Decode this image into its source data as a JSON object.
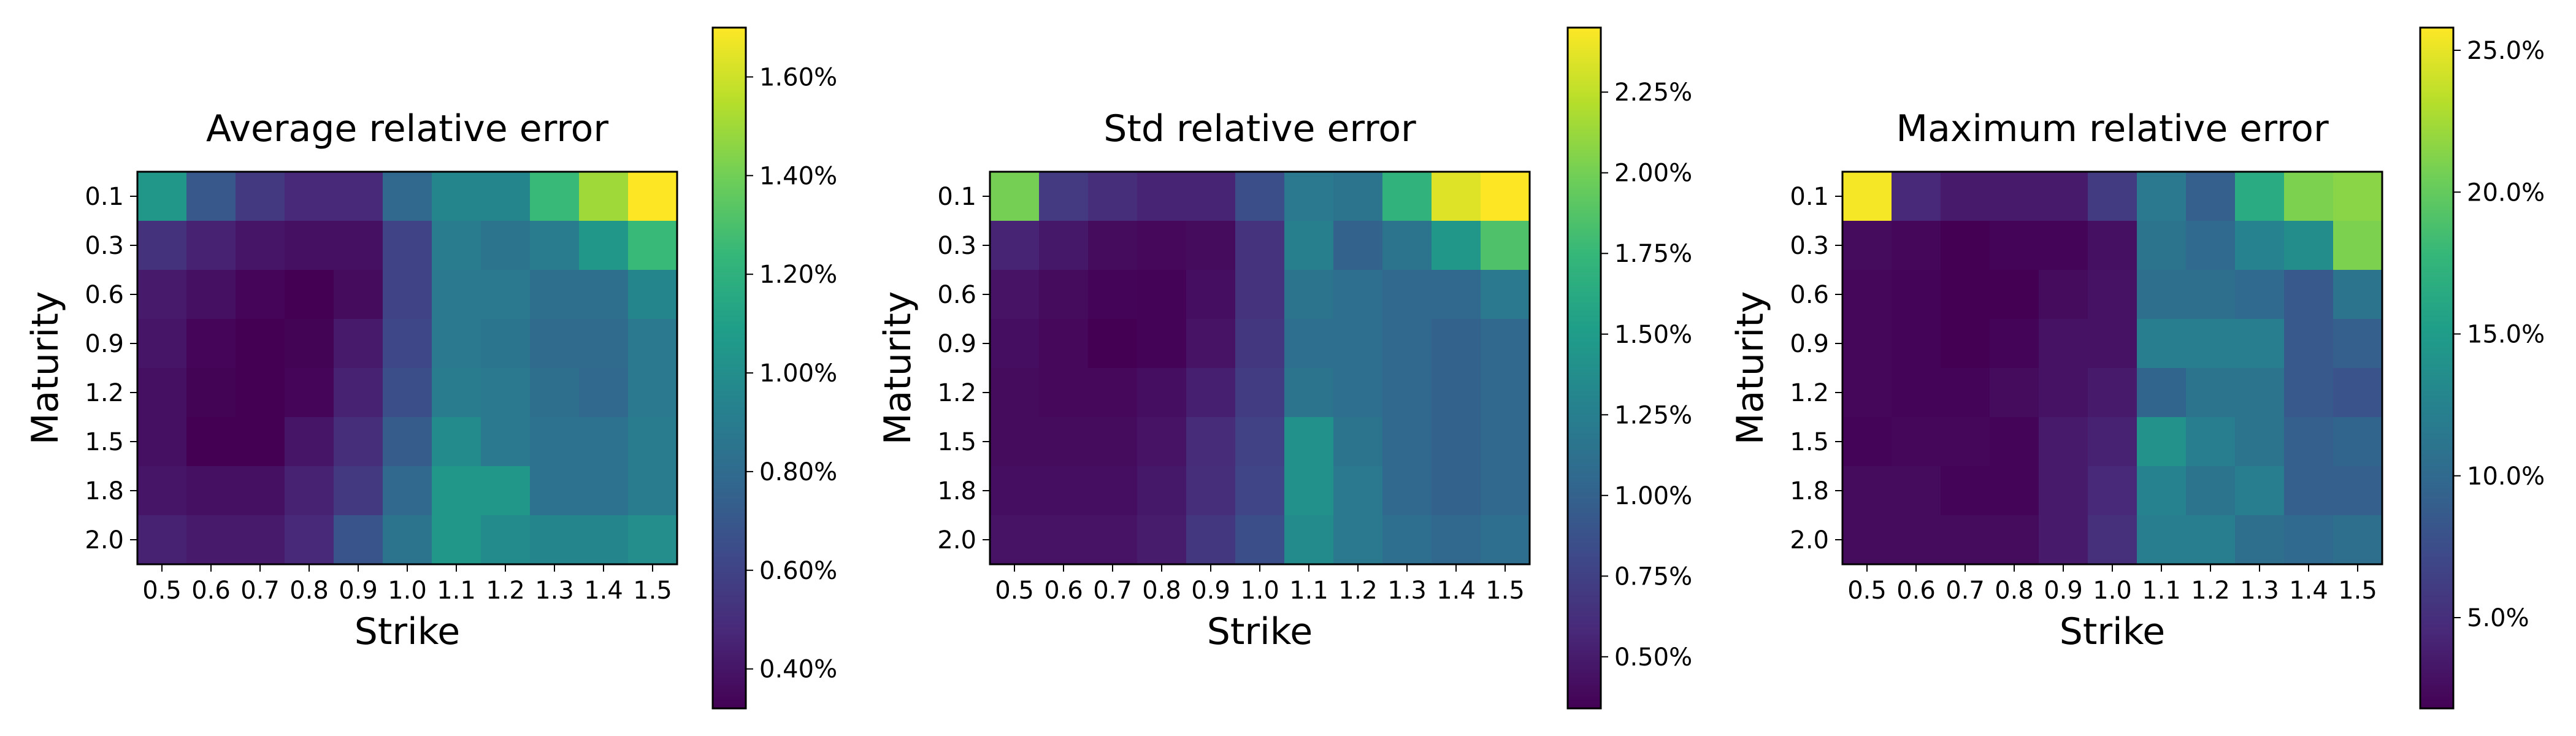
{
  "colormap": [
    "#440154",
    "#482878",
    "#3e4989",
    "#31688e",
    "#26828e",
    "#1f9e89",
    "#35b779",
    "#6ece58",
    "#b5de2b",
    "#fde725"
  ],
  "chart_data": [
    {
      "type": "heatmap",
      "title": "Average relative error",
      "xlabel": "Strike",
      "ylabel": "Maturity",
      "x_categories": [
        "0.5",
        "0.6",
        "0.7",
        "0.8",
        "0.9",
        "1.0",
        "1.1",
        "1.2",
        "1.3",
        "1.4",
        "1.5"
      ],
      "y_categories": [
        "0.1",
        "0.3",
        "0.6",
        "0.9",
        "1.2",
        "1.5",
        "1.8",
        "2.0"
      ],
      "values": [
        [
          1.05,
          0.7,
          0.55,
          0.48,
          0.48,
          0.78,
          0.95,
          0.95,
          1.25,
          1.5,
          1.7
        ],
        [
          0.52,
          0.45,
          0.4,
          0.38,
          0.38,
          0.6,
          0.9,
          0.85,
          0.9,
          1.05,
          1.25
        ],
        [
          0.42,
          0.38,
          0.34,
          0.32,
          0.36,
          0.6,
          0.88,
          0.88,
          0.82,
          0.82,
          0.95
        ],
        [
          0.4,
          0.34,
          0.32,
          0.33,
          0.42,
          0.62,
          0.88,
          0.86,
          0.8,
          0.8,
          0.88
        ],
        [
          0.38,
          0.33,
          0.31,
          0.34,
          0.45,
          0.65,
          0.9,
          0.88,
          0.82,
          0.78,
          0.88
        ],
        [
          0.38,
          0.32,
          0.32,
          0.4,
          0.5,
          0.72,
          0.98,
          0.88,
          0.84,
          0.84,
          0.9
        ],
        [
          0.4,
          0.38,
          0.38,
          0.45,
          0.55,
          0.78,
          1.05,
          1.05,
          0.84,
          0.84,
          0.9
        ],
        [
          0.45,
          0.42,
          0.42,
          0.48,
          0.68,
          0.85,
          1.05,
          0.98,
          0.95,
          0.95,
          1.0
        ]
      ],
      "colorbar": {
        "min": 0.32,
        "max": 1.7,
        "ticks": [
          0.4,
          0.6,
          0.8,
          1.0,
          1.2,
          1.4,
          1.6
        ],
        "labels": [
          "0.40%",
          "0.60%",
          "0.80%",
          "1.00%",
          "1.20%",
          "1.40%",
          "1.60%"
        ]
      }
    },
    {
      "type": "heatmap",
      "title": "Std relative error",
      "xlabel": "Strike",
      "ylabel": "Maturity",
      "x_categories": [
        "0.5",
        "0.6",
        "0.7",
        "0.8",
        "0.9",
        "1.0",
        "1.1",
        "1.2",
        "1.3",
        "1.4",
        "1.5"
      ],
      "y_categories": [
        "0.1",
        "0.3",
        "0.6",
        "0.9",
        "1.2",
        "1.5",
        "1.8",
        "2.0"
      ],
      "values": [
        [
          2.0,
          0.7,
          0.62,
          0.55,
          0.55,
          0.85,
          1.2,
          1.15,
          1.7,
          2.35,
          2.45
        ],
        [
          0.55,
          0.48,
          0.4,
          0.38,
          0.4,
          0.65,
          1.25,
          1.0,
          1.15,
          1.45,
          1.85
        ],
        [
          0.45,
          0.4,
          0.36,
          0.35,
          0.42,
          0.65,
          1.15,
          1.1,
          1.05,
          1.05,
          1.2
        ],
        [
          0.42,
          0.38,
          0.34,
          0.35,
          0.45,
          0.68,
          1.1,
          1.1,
          1.05,
          1.0,
          1.05
        ],
        [
          0.4,
          0.38,
          0.38,
          0.42,
          0.52,
          0.72,
          1.15,
          1.1,
          1.05,
          1.0,
          1.05
        ],
        [
          0.4,
          0.4,
          0.4,
          0.45,
          0.6,
          0.75,
          1.4,
          1.15,
          1.05,
          1.0,
          1.05
        ],
        [
          0.42,
          0.42,
          0.42,
          0.48,
          0.62,
          0.78,
          1.4,
          1.2,
          1.05,
          1.0,
          1.05
        ],
        [
          0.45,
          0.45,
          0.45,
          0.5,
          0.68,
          0.85,
          1.35,
          1.2,
          1.1,
          1.05,
          1.1
        ]
      ],
      "colorbar": {
        "min": 0.34,
        "max": 2.45,
        "ticks": [
          0.5,
          0.75,
          1.0,
          1.25,
          1.5,
          1.75,
          2.0,
          2.25
        ],
        "labels": [
          "0.50%",
          "0.75%",
          "1.00%",
          "1.25%",
          "1.50%",
          "1.75%",
          "2.00%",
          "2.25%"
        ]
      }
    },
    {
      "type": "heatmap",
      "title": "Maximum relative error",
      "xlabel": "Strike",
      "ylabel": "Maturity",
      "x_categories": [
        "0.5",
        "0.6",
        "0.7",
        "0.8",
        "0.9",
        "1.0",
        "1.1",
        "1.2",
        "1.3",
        "1.4",
        "1.5"
      ],
      "y_categories": [
        "0.1",
        "0.3",
        "0.6",
        "0.9",
        "1.2",
        "1.5",
        "1.8",
        "2.0"
      ],
      "values": [
        [
          25.5,
          4.5,
          3.5,
          3.5,
          3.5,
          6.0,
          11.5,
          9.0,
          16.5,
          21.0,
          21.5
        ],
        [
          2.5,
          2.2,
          1.8,
          2.0,
          2.0,
          2.8,
          11.0,
          10.0,
          12.5,
          13.5,
          21.0
        ],
        [
          2.2,
          2.0,
          1.8,
          1.8,
          2.5,
          3.0,
          10.5,
          10.5,
          10.0,
          8.5,
          11.0
        ],
        [
          2.2,
          2.0,
          1.8,
          2.0,
          3.0,
          3.0,
          12.0,
          12.0,
          12.0,
          8.5,
          9.0
        ],
        [
          2.2,
          2.0,
          2.0,
          2.5,
          3.0,
          3.5,
          9.5,
          11.0,
          11.0,
          8.5,
          8.0
        ],
        [
          2.0,
          2.2,
          2.2,
          2.0,
          3.5,
          4.0,
          14.0,
          12.0,
          11.0,
          9.0,
          9.5
        ],
        [
          2.5,
          2.5,
          2.0,
          2.0,
          3.5,
          4.5,
          12.5,
          11.0,
          12.0,
          9.0,
          9.0
        ],
        [
          2.5,
          2.5,
          2.5,
          2.5,
          3.5,
          5.0,
          12.0,
          12.0,
          10.5,
          10.0,
          10.5
        ]
      ],
      "colorbar": {
        "min": 1.8,
        "max": 25.8,
        "ticks": [
          5.0,
          10.0,
          15.0,
          20.0,
          25.0
        ],
        "labels": [
          "5.0%",
          "10.0%",
          "15.0%",
          "20.0%",
          "25.0%"
        ]
      }
    }
  ]
}
